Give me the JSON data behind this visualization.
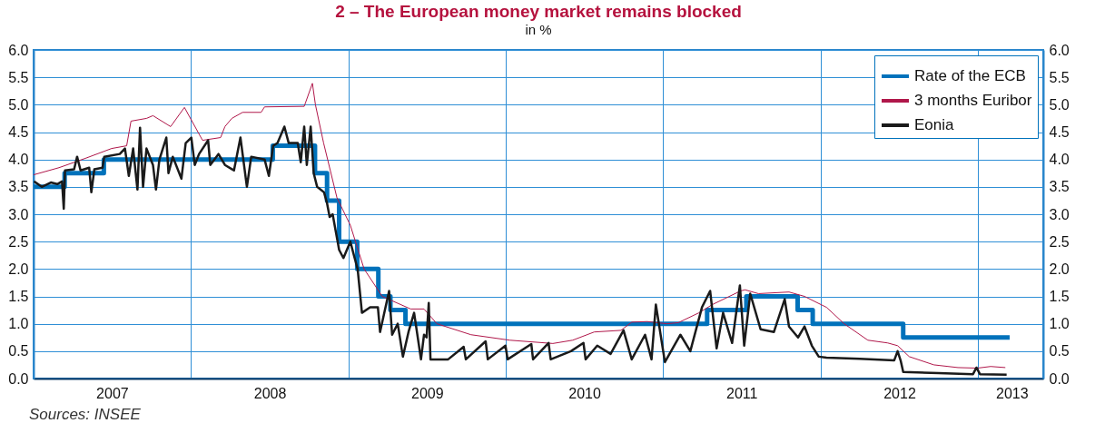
{
  "chart_data": {
    "type": "line",
    "title": "2 – The European money market remains blocked",
    "subtitle": "in %",
    "annotations": [
      "Sources: INSEE"
    ],
    "xlim": [
      "2007-01-01",
      "2013-06-01"
    ],
    "xticks": [
      {
        "value": "2007-01-01",
        "label": null
      },
      {
        "value": "2007-07-02",
        "label": "2007"
      },
      {
        "value": "2008-01-01",
        "label": null
      },
      {
        "value": "2008-07-02",
        "label": "2008"
      },
      {
        "value": "2009-01-01",
        "label": null
      },
      {
        "value": "2009-07-02",
        "label": "2009"
      },
      {
        "value": "2010-01-01",
        "label": null
      },
      {
        "value": "2010-07-02",
        "label": "2010"
      },
      {
        "value": "2011-01-01",
        "label": null
      },
      {
        "value": "2011-07-02",
        "label": "2011"
      },
      {
        "value": "2012-01-01",
        "label": null
      },
      {
        "value": "2012-07-02",
        "label": "2012"
      },
      {
        "value": "2013-01-01",
        "label": null
      },
      {
        "value": "2013-03-20",
        "label": "2013"
      }
    ],
    "ylim": [
      0,
      6
    ],
    "yticks": [
      {
        "value": 0,
        "label": "0.0"
      },
      {
        "value": 0.5,
        "label": "0.5"
      },
      {
        "value": 1,
        "label": "1.0"
      },
      {
        "value": 1.5,
        "label": "1.5"
      },
      {
        "value": 2,
        "label": "2.0"
      },
      {
        "value": 2.5,
        "label": "2.5"
      },
      {
        "value": 3,
        "label": "3.0"
      },
      {
        "value": 3.5,
        "label": "3.5"
      },
      {
        "value": 4,
        "label": "4.0"
      },
      {
        "value": 4.5,
        "label": "4.5"
      },
      {
        "value": 5,
        "label": "5.0"
      },
      {
        "value": 5.5,
        "label": "5.5"
      },
      {
        "value": 6,
        "label": "6.0"
      }
    ],
    "y2lim": [
      0,
      6
    ],
    "y2ticks": [
      {
        "value": 0,
        "label": "0.0"
      },
      {
        "value": 0.5,
        "label": "0.5"
      },
      {
        "value": 1,
        "label": "1.0"
      },
      {
        "value": 1.5,
        "label": "1.5"
      },
      {
        "value": 2,
        "label": "2.0"
      },
      {
        "value": 2.5,
        "label": "2.5"
      },
      {
        "value": 3,
        "label": "3.0"
      },
      {
        "value": 3.5,
        "label": "3.5"
      },
      {
        "value": 4,
        "label": "4.0"
      },
      {
        "value": 4.5,
        "label": "4.5"
      },
      {
        "value": 5,
        "label": "5.0"
      },
      {
        "value": 5.5,
        "label": "5.5"
      },
      {
        "value": 6,
        "label": "6.0"
      }
    ],
    "grid": true,
    "legend": "top right",
    "series": [
      {
        "name": "Rate of the ECB",
        "type": "step",
        "color": "#0072bb",
        "x": [
          "2007-01-01",
          "2007-03-14",
          "2007-06-13",
          "2008-07-09",
          "2008-10-15",
          "2008-11-12",
          "2008-12-10",
          "2009-01-21",
          "2009-03-11",
          "2009-04-08",
          "2009-05-13",
          "2011-04-13",
          "2011-07-13",
          "2011-11-09",
          "2011-12-14",
          "2012-07-11",
          "2013-03-15"
        ],
        "values": [
          3.5,
          3.75,
          4.0,
          4.25,
          3.75,
          3.25,
          2.5,
          2.0,
          1.5,
          1.25,
          1.0,
          1.25,
          1.5,
          1.25,
          1.0,
          0.75,
          0.75
        ]
      },
      {
        "name": "3 months Euribor",
        "type": "line",
        "color": "#b0174a",
        "x": [
          "2007-01-01",
          "2007-03-01",
          "2007-05-01",
          "2007-07-01",
          "2007-08-05",
          "2007-08-15",
          "2007-09-20",
          "2007-10-05",
          "2007-11-15",
          "2007-12-17",
          "2008-01-28",
          "2008-03-10",
          "2008-03-20",
          "2008-04-05",
          "2008-04-30",
          "2008-06-12",
          "2008-06-20",
          "2008-09-20",
          "2008-10-09",
          "2008-10-16",
          "2008-11-04",
          "2008-12-05",
          "2009-01-05",
          "2009-02-06",
          "2009-03-20",
          "2009-05-25",
          "2009-06-25",
          "2009-07-25",
          "2009-10-12",
          "2010-01-10",
          "2010-04-20",
          "2010-06-05",
          "2010-07-25",
          "2010-09-25",
          "2010-10-20",
          "2010-11-25",
          "2011-01-10",
          "2011-02-05",
          "2011-03-25",
          "2011-04-25",
          "2011-06-30",
          "2011-07-10",
          "2011-08-10",
          "2011-10-20",
          "2011-11-25",
          "2012-01-15",
          "2012-02-25",
          "2012-04-20",
          "2012-06-05",
          "2012-06-28",
          "2012-07-25",
          "2012-09-20",
          "2012-11-15",
          "2012-12-30",
          "2013-01-30",
          "2013-03-05"
        ],
        "values": [
          3.72,
          3.85,
          4.02,
          4.2,
          4.25,
          4.7,
          4.75,
          4.8,
          4.6,
          4.95,
          4.35,
          4.4,
          4.6,
          4.75,
          4.86,
          4.86,
          4.96,
          4.97,
          5.39,
          5.0,
          4.3,
          3.3,
          2.8,
          2.0,
          1.5,
          1.27,
          1.27,
          1.0,
          0.8,
          0.7,
          0.64,
          0.7,
          0.85,
          0.88,
          1.03,
          1.04,
          1.0,
          1.02,
          1.2,
          1.35,
          1.6,
          1.62,
          1.55,
          1.58,
          1.5,
          1.3,
          1.0,
          0.7,
          0.65,
          0.6,
          0.4,
          0.25,
          0.2,
          0.19,
          0.22,
          0.2
        ]
      },
      {
        "name": "Eonia",
        "type": "line",
        "color": "#1a1a1a",
        "x": [
          "2007-01-02",
          "2007-01-20",
          "2007-02-10",
          "2007-02-25",
          "2007-03-08",
          "2007-03-12",
          "2007-03-15",
          "2007-04-05",
          "2007-04-12",
          "2007-04-20",
          "2007-05-10",
          "2007-05-15",
          "2007-05-22",
          "2007-06-10",
          "2007-06-14",
          "2007-07-20",
          "2007-08-01",
          "2007-08-10",
          "2007-08-20",
          "2007-08-30",
          "2007-09-05",
          "2007-09-12",
          "2007-09-20",
          "2007-10-05",
          "2007-10-12",
          "2007-10-20",
          "2007-11-05",
          "2007-11-10",
          "2007-11-20",
          "2007-12-10",
          "2007-12-20",
          "2008-01-02",
          "2008-01-10",
          "2008-01-20",
          "2008-02-10",
          "2008-02-15",
          "2008-03-05",
          "2008-03-20",
          "2008-04-10",
          "2008-04-25",
          "2008-05-10",
          "2008-05-20",
          "2008-06-20",
          "2008-06-30",
          "2008-07-10",
          "2008-07-20",
          "2008-08-05",
          "2008-08-15",
          "2008-09-05",
          "2008-09-12",
          "2008-09-20",
          "2008-09-26",
          "2008-10-05",
          "2008-10-12",
          "2008-10-20",
          "2008-11-05",
          "2008-11-12",
          "2008-11-18",
          "2008-11-25",
          "2008-12-10",
          "2008-12-20",
          "2009-01-05",
          "2009-01-15",
          "2009-01-22",
          "2009-02-01",
          "2009-02-20",
          "2009-03-10",
          "2009-03-15",
          "2009-04-05",
          "2009-04-12",
          "2009-04-25",
          "2009-05-07",
          "2009-05-20",
          "2009-06-02",
          "2009-06-18",
          "2009-06-25",
          "2009-07-01",
          "2009-07-06",
          "2009-07-10",
          "2009-08-20",
          "2009-09-25",
          "2009-09-30",
          "2009-11-15",
          "2009-11-20",
          "2009-12-31",
          "2010-01-05",
          "2010-03-01",
          "2010-03-05",
          "2010-04-10",
          "2010-04-15",
          "2010-06-01",
          "2010-06-30",
          "2010-07-05",
          "2010-08-01",
          "2010-09-01",
          "2010-10-01",
          "2010-10-20",
          "2010-11-20",
          "2010-12-05",
          "2010-12-15",
          "2011-01-05",
          "2011-02-10",
          "2011-03-05",
          "2011-04-01",
          "2011-04-20",
          "2011-05-05",
          "2011-05-20",
          "2011-06-10",
          "2011-06-28",
          "2011-07-08",
          "2011-07-22",
          "2011-08-15",
          "2011-09-15",
          "2011-10-10",
          "2011-10-20",
          "2011-11-10",
          "2011-11-25",
          "2011-12-12",
          "2011-12-28",
          "2012-01-15",
          "2012-04-01",
          "2012-06-20",
          "2012-06-28",
          "2012-07-05",
          "2012-07-11",
          "2012-10-01",
          "2012-12-20",
          "2012-12-28",
          "2013-01-05",
          "2013-03-08"
        ],
        "values": [
          3.6,
          3.5,
          3.58,
          3.55,
          3.6,
          3.1,
          3.8,
          3.82,
          4.05,
          3.8,
          3.85,
          3.4,
          3.82,
          3.85,
          4.05,
          4.1,
          4.2,
          3.7,
          4.2,
          3.45,
          4.58,
          3.5,
          4.2,
          3.9,
          3.45,
          4.0,
          4.4,
          3.75,
          4.05,
          3.65,
          4.3,
          4.4,
          3.9,
          4.1,
          4.35,
          3.9,
          4.1,
          3.9,
          3.8,
          4.4,
          3.5,
          4.05,
          4.0,
          3.7,
          4.25,
          4.3,
          4.6,
          4.3,
          4.3,
          3.95,
          4.6,
          3.9,
          4.6,
          3.75,
          3.5,
          3.4,
          3.2,
          2.95,
          3.0,
          2.35,
          2.2,
          2.5,
          2.2,
          2.0,
          1.2,
          1.3,
          1.3,
          0.85,
          1.6,
          0.8,
          1.0,
          0.4,
          0.85,
          1.2,
          0.35,
          0.8,
          0.75,
          1.38,
          0.35,
          0.35,
          0.58,
          0.35,
          0.68,
          0.35,
          0.6,
          0.35,
          0.63,
          0.35,
          0.65,
          0.35,
          0.5,
          0.65,
          0.35,
          0.6,
          0.45,
          0.88,
          0.35,
          0.8,
          0.35,
          1.35,
          0.3,
          0.8,
          0.5,
          1.3,
          1.6,
          0.55,
          1.2,
          0.65,
          1.7,
          0.6,
          1.55,
          0.9,
          0.85,
          1.45,
          0.95,
          0.75,
          0.95,
          0.6,
          0.4,
          0.38,
          0.36,
          0.33,
          0.5,
          0.33,
          0.12,
          0.1,
          0.08,
          0.2,
          0.08,
          0.07
        ]
      }
    ]
  }
}
